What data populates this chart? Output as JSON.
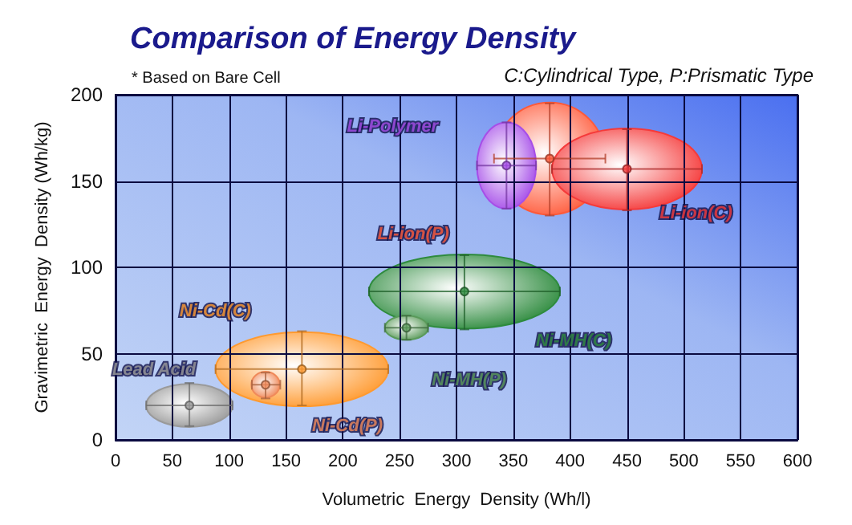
{
  "chart_data": {
    "type": "scatter",
    "title": "Comparison of Energy Density",
    "annotations": [
      "* Based on Bare Cell",
      "C:Cylindrical Type, P:Prismatic Type"
    ],
    "xlabel": "Volumetric  Energy  Density (Wh/l)",
    "ylabel": "Gravimetric  Energy  Density (Wh/kg)",
    "xlim": [
      0,
      600
    ],
    "xticks": [
      0,
      50,
      100,
      150,
      200,
      250,
      300,
      350,
      400,
      450,
      500,
      550,
      600
    ],
    "ylim": [
      0,
      200
    ],
    "yticks": [
      0,
      50,
      100,
      150,
      200
    ],
    "grid": true,
    "series": [
      {
        "name": "Lead Acid",
        "color": "#9a9a9a",
        "x": [
          65
        ],
        "values": [
          20
        ],
        "xerrors": [
          [
            27,
            103
          ]
        ],
        "errors": [
          [
            8,
            33
          ]
        ]
      },
      {
        "name": "Ni-Cd(C)",
        "color": "#ff9a30",
        "x": [
          164
        ],
        "values": [
          41
        ],
        "xerrors": [
          [
            88,
            240
          ]
        ],
        "errors": [
          [
            20,
            63
          ]
        ]
      },
      {
        "name": "Ni-Cd(P)",
        "color": "#f08a5a",
        "x": [
          132
        ],
        "values": [
          32
        ],
        "xerrors": [
          [
            120,
            145
          ]
        ],
        "errors": [
          [
            24,
            39
          ]
        ]
      },
      {
        "name": "Ni-MH(C)",
        "color": "#2e8b3e",
        "x": [
          307
        ],
        "values": [
          86
        ],
        "xerrors": [
          [
            223,
            391
          ]
        ],
        "errors": [
          [
            64,
            107
          ]
        ]
      },
      {
        "name": "Ni-MH(P)",
        "color": "#5a9a5a",
        "x": [
          256
        ],
        "values": [
          65
        ],
        "xerrors": [
          [
            237,
            275
          ]
        ],
        "errors": [
          [
            58,
            72
          ]
        ]
      },
      {
        "name": "Li-ion(P)",
        "color": "#ff5a3a",
        "x": [
          382
        ],
        "values": [
          163
        ],
        "xerrors": [
          [
            333,
            431
          ]
        ],
        "errors": [
          [
            130,
            195
          ]
        ]
      },
      {
        "name": "Li-Polymer",
        "color": "#a64ee8",
        "x": [
          344
        ],
        "values": [
          159
        ],
        "xerrors": [
          [
            318,
            370
          ]
        ],
        "errors": [
          [
            134,
            184
          ]
        ]
      },
      {
        "name": "Li-ion(C)",
        "color": "#f53a3a",
        "x": [
          450
        ],
        "values": [
          157
        ],
        "xerrors": [
          [
            384,
            516
          ]
        ],
        "errors": [
          [
            133,
            180
          ]
        ]
      }
    ]
  }
}
